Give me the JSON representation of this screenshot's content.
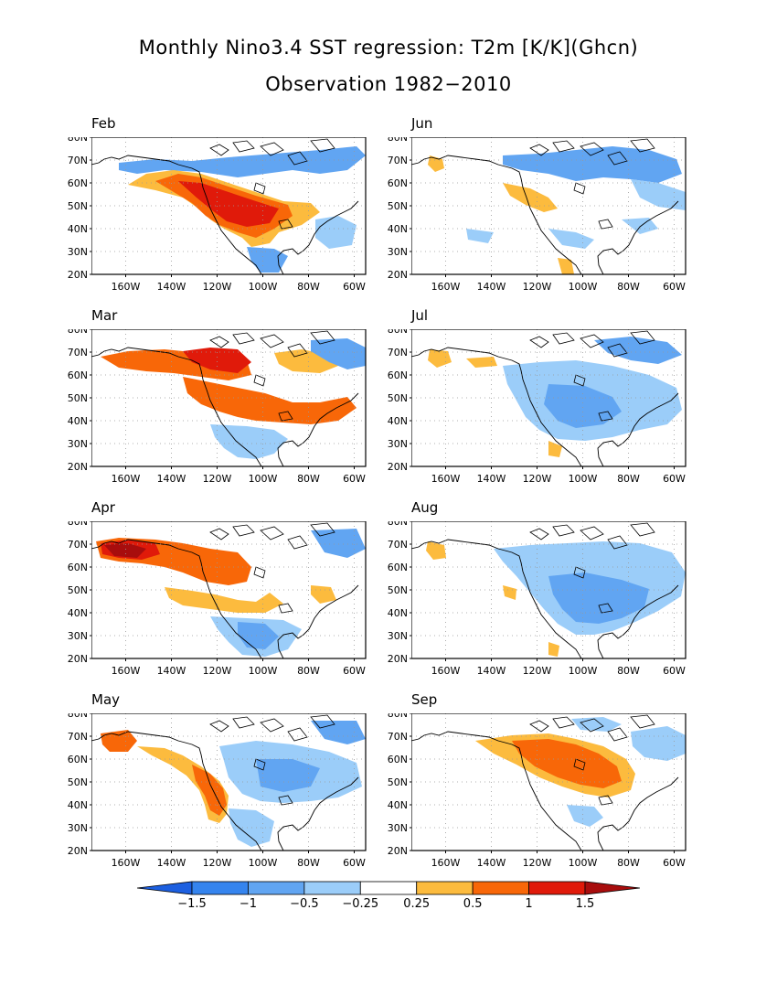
{
  "figure": {
    "title_line1": "Monthly Nino3.4 SST regression: T2m [K/K](Ghcn)",
    "title_line2": "Observation 1982−2010"
  },
  "map": {
    "lon_range": [
      -175,
      -55
    ],
    "lat_range": [
      20,
      80
    ],
    "lat_ticks": [
      "80N",
      "70N",
      "60N",
      "50N",
      "40N",
      "30N",
      "20N"
    ],
    "lon_ticks": [
      "160W",
      "140W",
      "120W",
      "100W",
      "80W",
      "60W"
    ],
    "panels": [
      {
        "label": "Feb",
        "dominant": "warm west/north-central, cool far north & south"
      },
      {
        "label": "Jun",
        "dominant": "mostly cool north, weak warm west"
      },
      {
        "label": "Mar",
        "dominant": "warm north and east, cool south"
      },
      {
        "label": "Jul",
        "dominant": "cool interior"
      },
      {
        "label": "Apr",
        "dominant": "strong warm Alaska, cool south"
      },
      {
        "label": "Aug",
        "dominant": "cool interior and east"
      },
      {
        "label": "May",
        "dominant": "warm west coast, cool interior"
      },
      {
        "label": "Sep",
        "dominant": "warm central Canada"
      }
    ]
  },
  "colorbar": {
    "tick_labels": [
      "−1.5",
      "−1",
      "−0.5",
      "−0.25",
      "0.25",
      "0.5",
      "1",
      "1.5"
    ],
    "colors": [
      "#1c5fe0",
      "#3584ee",
      "#61a5f2",
      "#9bcdf9",
      "#ffffff",
      "#fcbb3e",
      "#f86708",
      "#e01a0a",
      "#a80d0d"
    ]
  }
}
